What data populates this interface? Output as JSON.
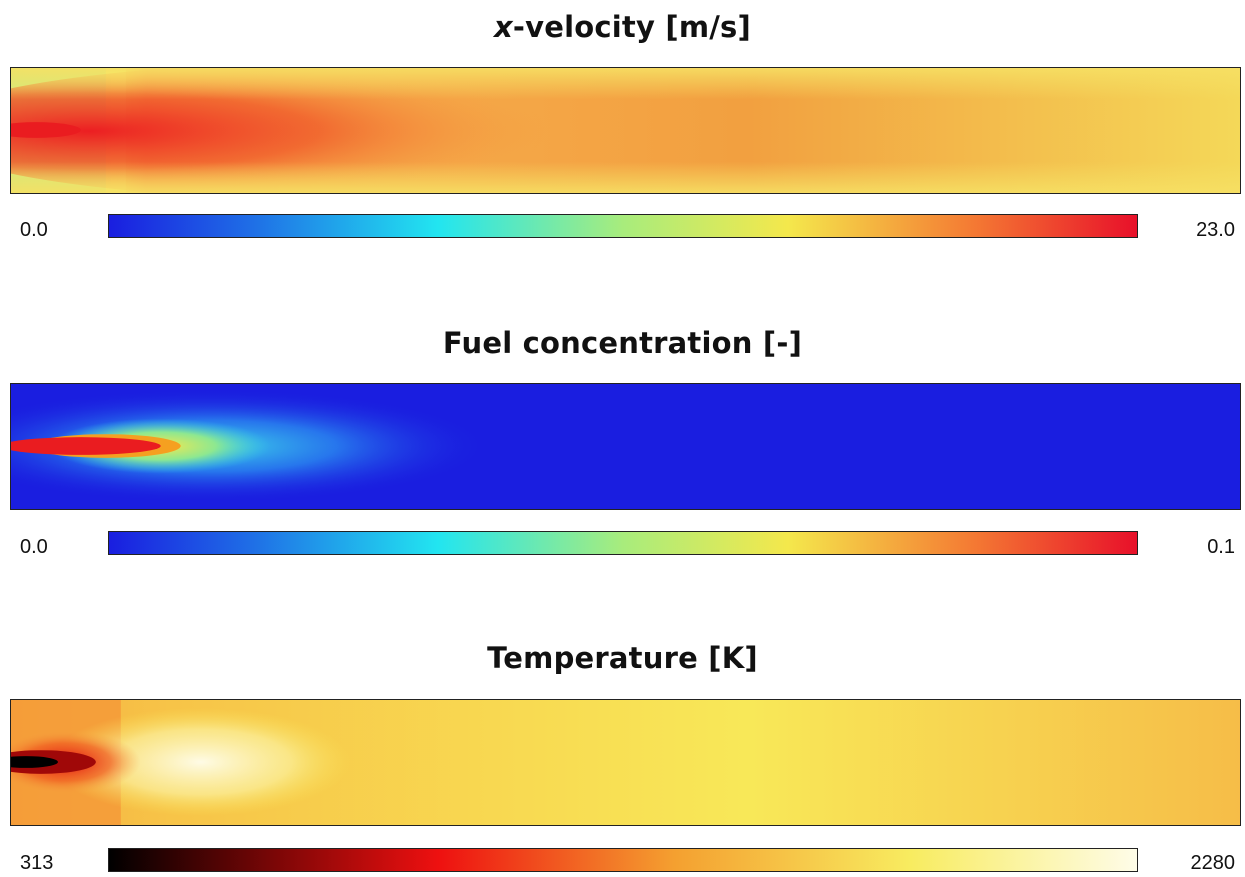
{
  "panels": [
    {
      "title_italic": "x",
      "title_rest": "-velocity [m/s]",
      "colormap": "jet",
      "min_label": "0.0",
      "max_label": "23.0"
    },
    {
      "title_italic": "",
      "title_rest": "Fuel concentration [-]",
      "colormap": "jet",
      "min_label": "0.0",
      "max_label": "0.1"
    },
    {
      "title_italic": "",
      "title_rest": "Temperature [K]",
      "colormap": "hot",
      "min_label": "313",
      "max_label": "2280"
    }
  ],
  "colors": {
    "jet": [
      "#1a1ee0",
      "#1f6fe6",
      "#22e5f0",
      "#a8ec7c",
      "#f4e84c",
      "#f47a33",
      "#e8102a"
    ],
    "hot": [
      "#000000",
      "#7a0606",
      "#ee1010",
      "#f4a030",
      "#f8ec60",
      "#fefce8"
    ]
  }
}
